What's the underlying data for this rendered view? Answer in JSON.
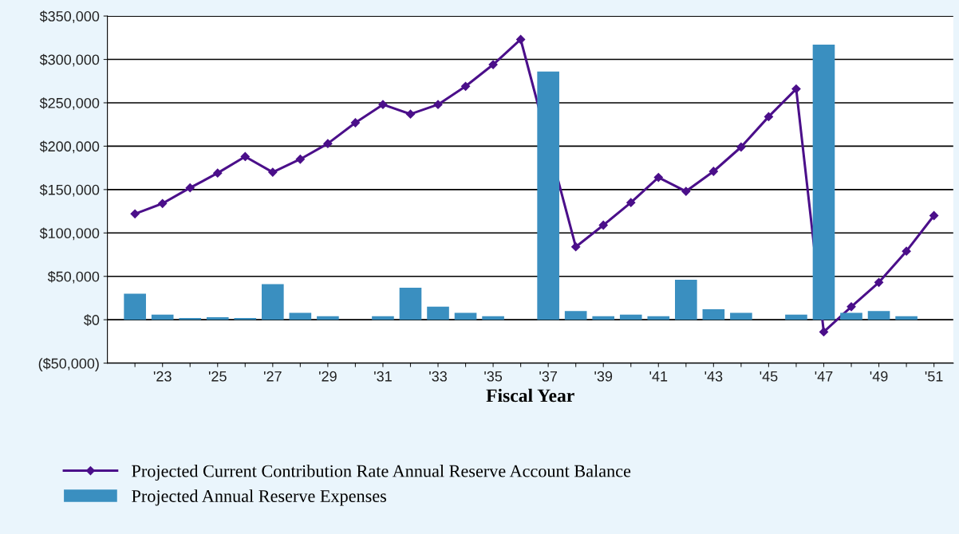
{
  "chart_data": {
    "type": "bar",
    "xlabel": "Fiscal Year",
    "categories": [
      null,
      "'23",
      null,
      "'25",
      null,
      "'27",
      null,
      "'29",
      null,
      "'31",
      null,
      "'33",
      null,
      "'35",
      null,
      "'37",
      null,
      "'39",
      null,
      "'41",
      null,
      "'43",
      null,
      "'45",
      null,
      "'47",
      null,
      "'49",
      null,
      "'51"
    ],
    "series": [
      {
        "name": "Projected Current Contribution Rate Annual Reserve Account Balance",
        "type": "line",
        "color": "#4b0f8a",
        "marker": "diamond",
        "line_style": "solid",
        "values": [
          122000,
          134000,
          152000,
          169000,
          188000,
          170000,
          185000,
          203000,
          227000,
          248000,
          237000,
          248000,
          269000,
          294000,
          323000,
          null,
          84000,
          109000,
          135000,
          164000,
          148000,
          171000,
          199000,
          234000,
          266000,
          -14000,
          15000,
          43000,
          79000,
          120000
        ]
      },
      {
        "name": "Projected Annual Reserve Expenses",
        "color": "#3a8fc0",
        "values": [
          30000,
          6000,
          2000,
          3000,
          2000,
          41000,
          8000,
          4000,
          0,
          4000,
          37000,
          15000,
          8000,
          4000,
          0,
          286000,
          10000,
          4000,
          6000,
          4000,
          46000,
          12000,
          8000,
          0,
          6000,
          317000,
          8000,
          10000,
          4000,
          0
        ]
      }
    ],
    "ylim": [
      -50000,
      350000
    ],
    "yticks": [
      {
        "value": -50000,
        "label": "($50,000)"
      },
      {
        "value": 0,
        "label": "$0"
      },
      {
        "value": 50000,
        "label": "$50,000"
      },
      {
        "value": 100000,
        "label": "$100,000"
      },
      {
        "value": 150000,
        "label": "$150,000"
      },
      {
        "value": 200000,
        "label": "$200,000"
      },
      {
        "value": 250000,
        "label": "$250,000"
      },
      {
        "value": 300000,
        "label": "$300,000"
      },
      {
        "value": 350000,
        "label": "$350,000"
      }
    ],
    "grid": "y",
    "legend": "bottom"
  }
}
